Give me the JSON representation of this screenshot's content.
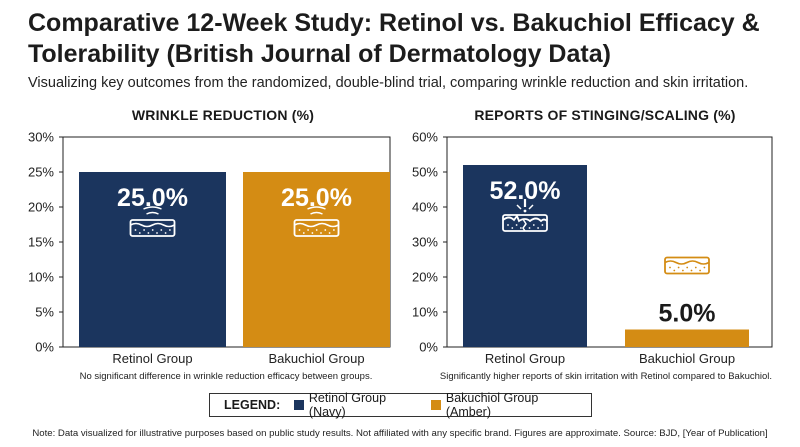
{
  "header": {
    "title": "Comparative 12-Week Study: Retinol vs. Bakuchiol Efficacy & Tolerability (British Journal of Dermatology Data)",
    "subtitle": "Visualizing key outcomes from the randomized, double-blind trial, comparing wrinkle reduction and skin irritation."
  },
  "colors": {
    "retinol": "#1b355e",
    "bakuchiol": "#d48c14",
    "label_dark": "#1a1a1a"
  },
  "chart_data": [
    {
      "type": "bar",
      "title": "WRINKLE REDUCTION (%)",
      "categories": [
        "Retinol Group",
        "Bakuchiol Group"
      ],
      "values": [
        25.0,
        25.0
      ],
      "value_labels": [
        "25.0%",
        "25.0%"
      ],
      "ylim": [
        0,
        30
      ],
      "yticks": [
        0,
        5,
        10,
        15,
        20,
        25,
        30
      ],
      "ytick_labels": [
        "0%",
        "5%",
        "10%",
        "15%",
        "20%",
        "25%",
        "30%"
      ],
      "icons": [
        "smooth-skin-icon",
        "smooth-skin-icon"
      ],
      "note": "No significant difference in wrinkle reduction efficacy between groups."
    },
    {
      "type": "bar",
      "title": "REPORTS OF STINGING/SCALING (%)",
      "categories": [
        "Retinol Group",
        "Bakuchiol Group"
      ],
      "values": [
        52.0,
        5.0
      ],
      "value_labels": [
        "52.0%",
        "5.0%"
      ],
      "ylim": [
        0,
        60
      ],
      "yticks": [
        0,
        10,
        20,
        30,
        40,
        50,
        60
      ],
      "ytick_labels": [
        "0%",
        "10%",
        "20%",
        "30%",
        "40%",
        "50%",
        "60%"
      ],
      "icons": [
        "irritated-skin-icon",
        "calm-skin-icon"
      ],
      "note": "Significantly higher reports of skin irritation with Retinol compared to Bakuchiol."
    }
  ],
  "legend": {
    "title": "LEGEND:",
    "items": [
      "Retinol Group (Navy)",
      "Bakuchiol Group (Amber)"
    ]
  },
  "footer": "Note: Data visualized for illustrative purposes based on public study results. Not affiliated with any specific brand. Figures are approximate. Source: BJD, [Year of Publication]"
}
